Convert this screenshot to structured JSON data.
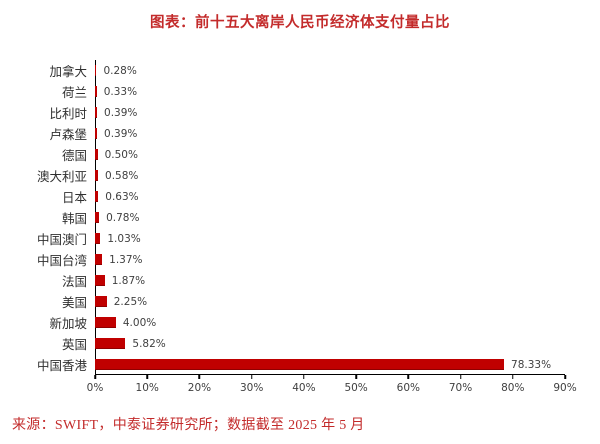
{
  "title": "图表：前十五大离岸人民币经济体支付量占比",
  "footer": "来源：SWIFT，中泰证券研究所；数据截至 2025 年 5 月",
  "colors": {
    "title_red": "#c32b2b",
    "bar_red": "#c00000",
    "axis_black": "#000000",
    "label_gray": "#3f3f3f"
  },
  "chart_data": {
    "type": "bar",
    "orientation": "horizontal",
    "title": "图表：前十五大离岸人民币经济体支付量占比",
    "categories": [
      "加拿大",
      "荷兰",
      "比利时",
      "卢森堡",
      "德国",
      "澳大利亚",
      "日本",
      "韩国",
      "中国澳门",
      "中国台湾",
      "法国",
      "美国",
      "新加坡",
      "英国",
      "中国香港"
    ],
    "values": [
      0.28,
      0.33,
      0.39,
      0.39,
      0.5,
      0.58,
      0.63,
      0.78,
      1.03,
      1.37,
      1.87,
      2.25,
      4.0,
      5.82,
      78.33
    ],
    "value_labels": [
      "0.28%",
      "0.33%",
      "0.39%",
      "0.39%",
      "0.50%",
      "0.58%",
      "0.63%",
      "0.78%",
      "1.03%",
      "1.37%",
      "1.87%",
      "2.25%",
      "4.00%",
      "5.82%",
      "78.33%"
    ],
    "xlabel": "",
    "ylabel": "",
    "xlim": [
      0,
      90
    ],
    "xtick_values": [
      0,
      10,
      20,
      30,
      40,
      50,
      60,
      70,
      80,
      90
    ],
    "xticks": [
      "0%",
      "10%",
      "20%",
      "30%",
      "40%",
      "50%",
      "60%",
      "70%",
      "80%",
      "90%"
    ],
    "grid": false,
    "legend": false,
    "bar_color": "#c00000",
    "source_note": "来源：SWIFT，中泰证券研究所；数据截至 2025 年 5 月"
  }
}
